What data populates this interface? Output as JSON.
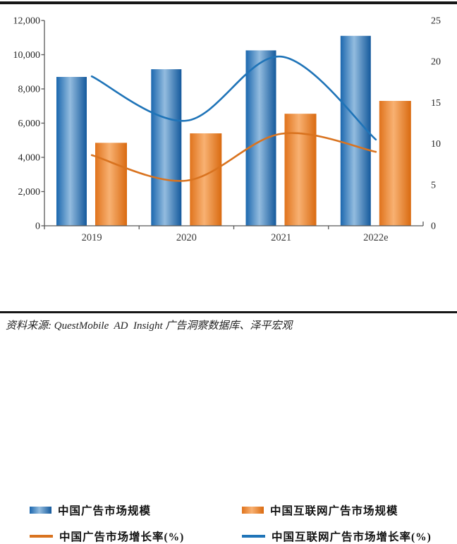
{
  "source": {
    "text": "资料来源: QuestMobile  AD  Insight 广告洞察数据库、泽平宏观"
  },
  "chart_data": {
    "type": "bar",
    "subtype": "combo-bar-line-dual-axis",
    "categories": [
      "2019",
      "2020",
      "2021",
      "2022e"
    ],
    "bar_series": [
      {
        "name": "中国广告市场规模",
        "axis": "left",
        "values": [
          8700,
          9150,
          10250,
          11100
        ],
        "color_dark": "#1B67AE",
        "color_light": "#93BCDF",
        "color_dark2": "#14599C"
      },
      {
        "name": "中国互联网广告市场规模",
        "axis": "left",
        "values": [
          4850,
          5400,
          6550,
          7300
        ],
        "color_dark": "#E0731C",
        "color_light": "#F8B172",
        "color_dark2": "#D96A10"
      }
    ],
    "line_series": [
      {
        "name": "中国广告市场增长率(%)",
        "axis": "right",
        "values": [
          8.6,
          5.5,
          11.2,
          9.0
        ],
        "color": "#D9731F"
      },
      {
        "name": "中国互联网广告市场增长率(%)",
        "axis": "right",
        "values": [
          18.2,
          12.8,
          20.6,
          10.5
        ],
        "color": "#1F74B8"
      }
    ],
    "left_axis": {
      "min": 0,
      "max": 12000,
      "step": 2000,
      "tick_labels": [
        "12,000",
        "10,000",
        "8,000",
        "6,000",
        "4,000",
        "2,000",
        "0"
      ]
    },
    "right_axis": {
      "min": 0,
      "max": 25,
      "step": 5,
      "tick_labels": [
        "25",
        "20",
        "15",
        "10",
        "5",
        "0"
      ]
    },
    "grid": false,
    "legend_position": "bottom",
    "axis_color": "#595959"
  }
}
